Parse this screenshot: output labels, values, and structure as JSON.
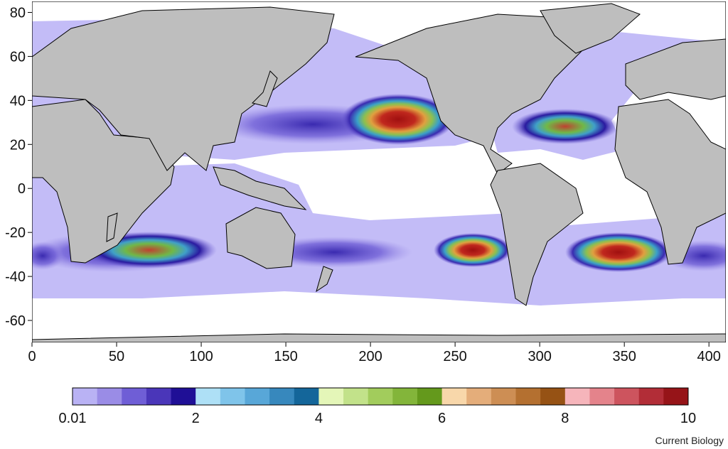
{
  "map": {
    "x_ticks": [
      "0",
      "50",
      "100",
      "150",
      "200",
      "250",
      "300",
      "350",
      "400"
    ],
    "y_ticks": [
      "80",
      "60",
      "40",
      "20",
      "0",
      "-20",
      "-40",
      "-60"
    ],
    "x_range": [
      0,
      410
    ],
    "y_range": [
      -70,
      85
    ]
  },
  "colorbar": {
    "labels": [
      "0.01",
      "2",
      "4",
      "6",
      "8",
      "10"
    ],
    "colors": [
      "#b9b2f4",
      "#9a8ce6",
      "#6f5ed6",
      "#4a36b9",
      "#1f0f96",
      "#aee0f6",
      "#7fc4ea",
      "#58a7d8",
      "#3788bd",
      "#14669a",
      "#e4f6b8",
      "#c2e28a",
      "#a2cc5c",
      "#83b53a",
      "#64991c",
      "#f8d7aa",
      "#e4ad7a",
      "#cd8e54",
      "#b47030",
      "#965214",
      "#f6b5bb",
      "#e4838b",
      "#cd545e",
      "#b22d37",
      "#961418"
    ]
  },
  "credit": "Current Biology",
  "colors": {
    "land": "#bebebe",
    "low_density": "#c3bcf7",
    "ocean": "#ffffff"
  }
}
